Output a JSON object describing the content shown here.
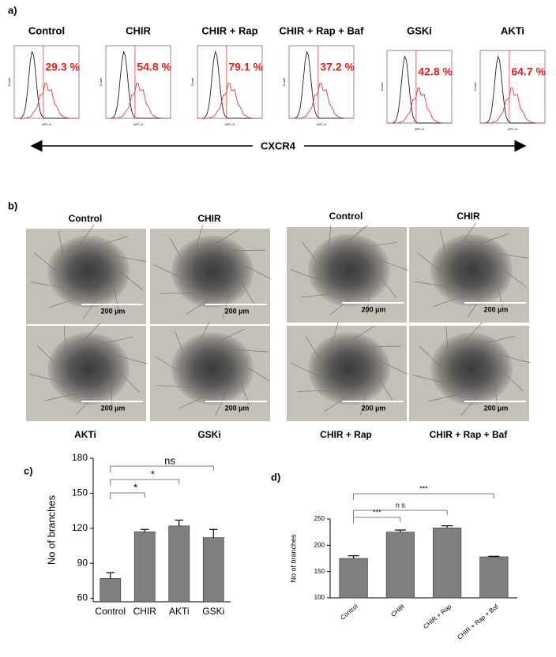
{
  "panel_a": {
    "label": "a)",
    "axis_label": "CXCR4",
    "hist_x_label": "APC-A",
    "hist_y_label": "Count",
    "histograms": [
      {
        "title": "Control",
        "percent": "29.3 %"
      },
      {
        "title": "CHIR",
        "percent": "54.8 %"
      },
      {
        "title": "CHIR + Rap",
        "percent": "79.1 %"
      },
      {
        "title": "CHIR + Rap + Baf",
        "percent": "37.2 %"
      },
      {
        "title": "GSKi",
        "percent": "42.8 %"
      },
      {
        "title": "AKTi",
        "percent": "64.7 %"
      }
    ]
  },
  "panel_b": {
    "label": "b)",
    "images": [
      {
        "title": "Control",
        "scale": "200 µm"
      },
      {
        "title": "CHIR",
        "scale": "200 µm"
      },
      {
        "title": "AKTi",
        "scale": "200 µm"
      },
      {
        "title": "GSKi",
        "scale": "200 µm"
      },
      {
        "title": "Control",
        "scale": "200 µm"
      },
      {
        "title": "CHIR",
        "scale": "200 µm"
      },
      {
        "title": "CHIR + Rap",
        "scale": "200 µm"
      },
      {
        "title": "CHIR + Rap + Baf",
        "scale": "200 µm"
      }
    ]
  },
  "chart_data": [
    {
      "type": "bar",
      "panel": "c)",
      "y_label": "No of branches",
      "categories": [
        "Control",
        "CHIR",
        "AKTi",
        "GSKi"
      ],
      "values": [
        77,
        117,
        122,
        112
      ],
      "errors": [
        5,
        2,
        5,
        7
      ],
      "color": "#7f7f7f",
      "ylim": [
        57,
        180
      ],
      "yticks": [
        60,
        90,
        120,
        150,
        180
      ],
      "annotations": [
        "*",
        "*",
        "ns"
      ]
    },
    {
      "type": "bar",
      "panel": "d)",
      "y_label": "No of branches",
      "categories": [
        "Control",
        "CHIR",
        "CHIR + Rap",
        "CHIR + Rap + Baf"
      ],
      "values": [
        175,
        225,
        233,
        178
      ],
      "errors": [
        5,
        4,
        4,
        1
      ],
      "color": "#7f7f7f",
      "ylim": [
        100,
        250
      ],
      "yticks": [
        100,
        150,
        200,
        250
      ],
      "annotations": [
        "***",
        "n s",
        "***"
      ]
    }
  ]
}
